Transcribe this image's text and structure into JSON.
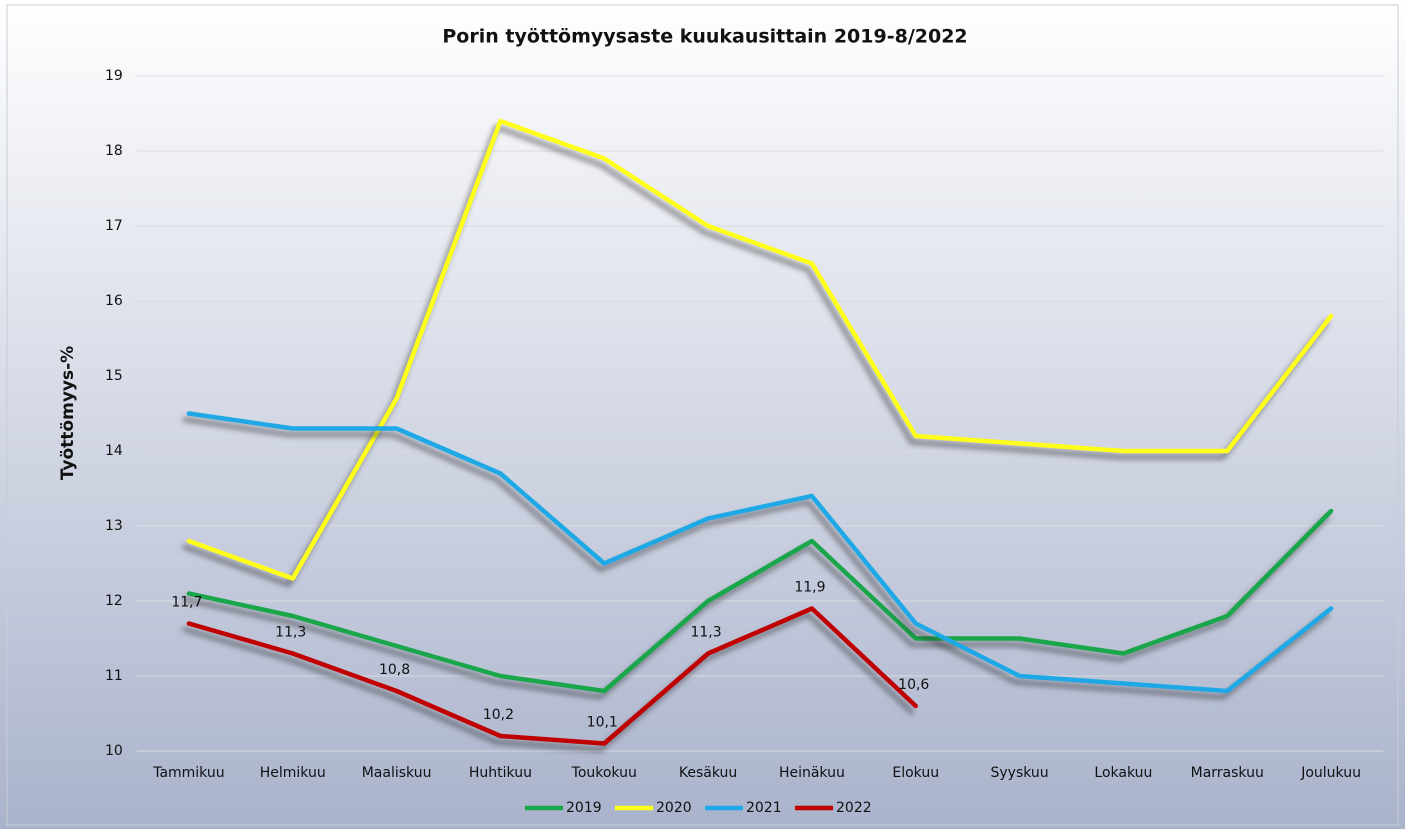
{
  "chart_data": {
    "type": "line",
    "title": "Porin työttömyysaste kuukausittain 2019-8/2022",
    "y_label": "Työttömyys-%",
    "categories": [
      "Tammikuu",
      "Helmikuu",
      "Maaliskuu",
      "Huhtikuu",
      "Toukokuu",
      "Kesäkuu",
      "Heinäkuu",
      "Elokuu",
      "Syyskuu",
      "Lokakuu",
      "Marraskuu",
      "Joulukuu"
    ],
    "series": [
      {
        "name": "2019",
        "color": "#1aa64a",
        "values": [
          12.1,
          11.8,
          11.4,
          11.0,
          10.8,
          12.0,
          12.8,
          11.5,
          11.5,
          11.3,
          11.8,
          13.2
        ]
      },
      {
        "name": "2020",
        "color": "#ffff1a",
        "values": [
          12.8,
          12.3,
          14.7,
          18.4,
          17.9,
          17.0,
          16.5,
          14.2,
          14.1,
          14.0,
          14.0,
          15.8
        ]
      },
      {
        "name": "2021",
        "color": "#1ea9e6",
        "values": [
          14.5,
          14.3,
          14.3,
          13.7,
          12.5,
          13.1,
          13.4,
          11.7,
          11.0,
          10.9,
          10.8,
          11.9
        ]
      },
      {
        "name": "2022",
        "color": "#c00000",
        "values": [
          11.7,
          11.3,
          10.8,
          10.2,
          10.1,
          11.3,
          11.9,
          10.6,
          null,
          null,
          null,
          null
        ],
        "value_labels": [
          "11,7",
          "11,3",
          "10,8",
          "10,2",
          "10,1",
          "11,3",
          "11,9",
          "10,6",
          null,
          null,
          null,
          null
        ]
      }
    ],
    "ylim": [
      10,
      19
    ],
    "yticks": [
      10,
      11,
      12,
      13,
      14,
      15,
      16,
      17,
      18,
      19
    ],
    "grid": true,
    "legend": "bottom"
  }
}
